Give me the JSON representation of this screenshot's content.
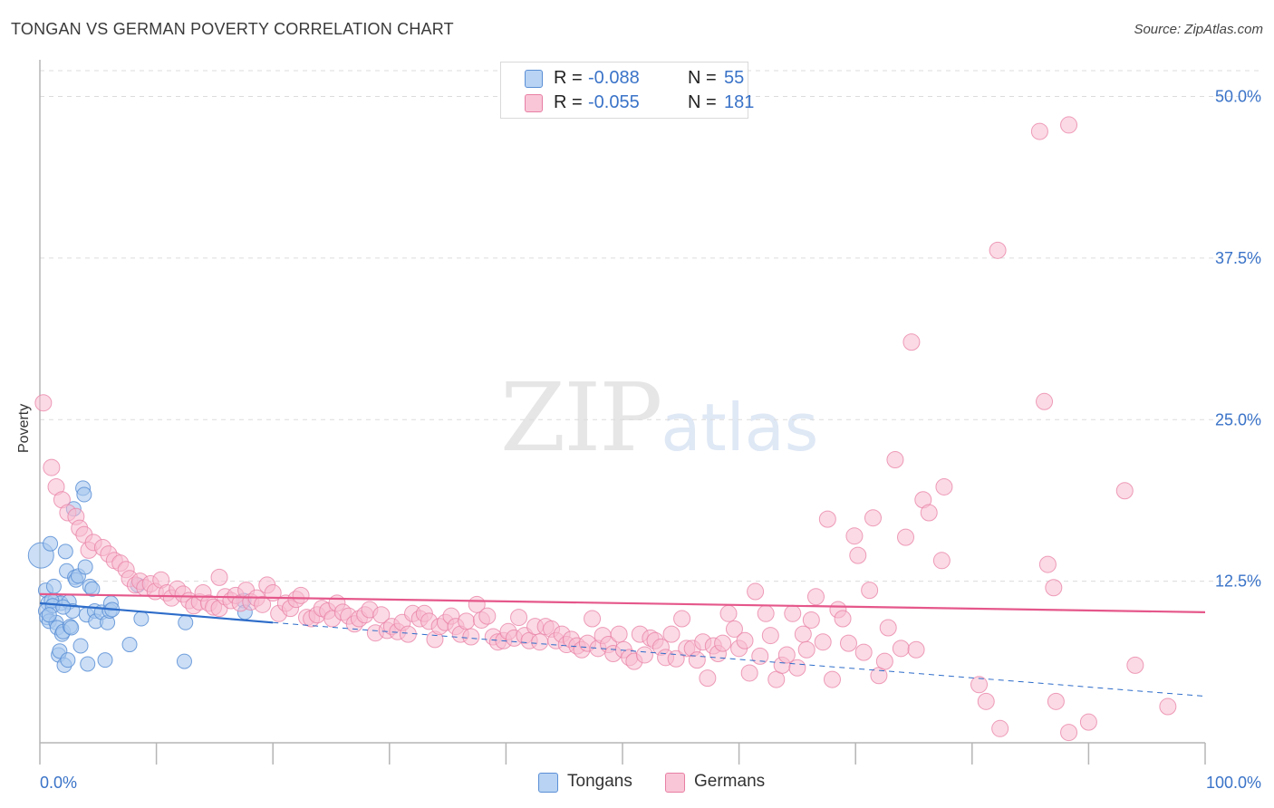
{
  "header": {
    "title": "TONGAN VS GERMAN POVERTY CORRELATION CHART",
    "source": "Source: ZipAtlas.com"
  },
  "watermark": {
    "zip": "ZIP",
    "atlas": "atlas"
  },
  "legend": {
    "rows": [
      {
        "r_label": "R =",
        "r_value": "-0.088",
        "n_label": "N =",
        "n_value": "55"
      },
      {
        "r_label": "R =",
        "r_value": "-0.055",
        "n_label": "N =",
        "n_value": "181"
      }
    ],
    "bottom": [
      "Tongans",
      "Germans"
    ]
  },
  "colors": {
    "tongans_fill": "#a9c8ef",
    "tongans_stroke": "#5b8fd6",
    "tongans_line": "#2d6cc9",
    "germans_fill": "#f7bcd0",
    "germans_stroke": "#e87fa4",
    "germans_line": "#e5578a",
    "tick_label": "#3a73c8"
  },
  "chart_data": {
    "type": "scatter",
    "title": "TONGAN VS GERMAN POVERTY CORRELATION CHART",
    "xlabel": "",
    "ylabel": "Poverty",
    "xlim": [
      0,
      100
    ],
    "ylim": [
      0,
      52
    ],
    "x_tick_labels": [
      "0.0%",
      "100.0%"
    ],
    "y_ticks": [
      12.5,
      25.0,
      37.5,
      50.0
    ],
    "y_tick_labels": [
      "12.5%",
      "25.0%",
      "37.5%",
      "50.0%"
    ],
    "grid": true,
    "series": [
      {
        "name": "Tongans",
        "r": -0.088,
        "n": 55,
        "trend": {
          "x": [
            0,
            20
          ],
          "y": [
            10.8,
            9.3
          ]
        },
        "trend_extension": {
          "x": [
            20,
            100
          ],
          "y": [
            9.3,
            3.6
          ]
        },
        "points": [
          [
            0.1,
            14.5
          ],
          [
            0.5,
            11.8
          ],
          [
            0.7,
            10.8
          ],
          [
            0.5,
            10.2
          ],
          [
            0.6,
            9.7
          ],
          [
            0.8,
            9.4
          ],
          [
            0.9,
            15.4
          ],
          [
            1.2,
            12.1
          ],
          [
            1.3,
            11.0
          ],
          [
            1.4,
            9.3
          ],
          [
            1.5,
            8.9
          ],
          [
            1.6,
            6.8
          ],
          [
            1.7,
            7.1
          ],
          [
            1.8,
            10.8
          ],
          [
            1.9,
            8.4
          ],
          [
            2.0,
            8.6
          ],
          [
            2.1,
            6.0
          ],
          [
            2.2,
            14.8
          ],
          [
            2.3,
            13.3
          ],
          [
            2.4,
            6.4
          ],
          [
            2.5,
            10.9
          ],
          [
            2.6,
            9.0
          ],
          [
            2.7,
            8.9
          ],
          [
            2.8,
            10.2
          ],
          [
            2.9,
            18.1
          ],
          [
            3.0,
            12.8
          ],
          [
            3.1,
            12.6
          ],
          [
            3.3,
            12.9
          ],
          [
            3.5,
            7.5
          ],
          [
            3.7,
            19.7
          ],
          [
            3.8,
            19.2
          ],
          [
            3.9,
            13.6
          ],
          [
            4.0,
            9.9
          ],
          [
            4.1,
            6.1
          ],
          [
            4.3,
            12.1
          ],
          [
            4.5,
            11.9
          ],
          [
            4.7,
            10.2
          ],
          [
            4.8,
            9.4
          ],
          [
            5.3,
            10.1
          ],
          [
            5.6,
            6.4
          ],
          [
            5.8,
            9.3
          ],
          [
            6.0,
            10.2
          ],
          [
            6.1,
            10.8
          ],
          [
            6.2,
            10.3
          ],
          [
            7.7,
            7.6
          ],
          [
            8.4,
            12.2
          ],
          [
            8.7,
            9.6
          ],
          [
            12.5,
            9.3
          ],
          [
            12.4,
            6.3
          ],
          [
            17.5,
            11.0
          ],
          [
            17.6,
            10.1
          ],
          [
            1.0,
            11.0
          ],
          [
            1.1,
            10.6
          ],
          [
            2.0,
            10.5
          ],
          [
            0.8,
            9.9
          ]
        ]
      },
      {
        "name": "Germans",
        "r": -0.055,
        "n": 181,
        "trend": {
          "x": [
            0,
            100
          ],
          "y": [
            11.5,
            10.1
          ]
        },
        "points": [
          [
            0.3,
            26.3
          ],
          [
            1.0,
            21.3
          ],
          [
            1.4,
            19.8
          ],
          [
            1.9,
            18.8
          ],
          [
            2.4,
            17.8
          ],
          [
            3.1,
            17.5
          ],
          [
            3.4,
            16.6
          ],
          [
            3.8,
            16.1
          ],
          [
            4.2,
            14.9
          ],
          [
            4.6,
            15.5
          ],
          [
            5.4,
            15.1
          ],
          [
            5.9,
            14.6
          ],
          [
            6.4,
            14.1
          ],
          [
            6.9,
            13.9
          ],
          [
            7.4,
            13.4
          ],
          [
            7.7,
            12.7
          ],
          [
            8.2,
            12.2
          ],
          [
            8.6,
            12.5
          ],
          [
            9.0,
            12.0
          ],
          [
            9.5,
            12.3
          ],
          [
            9.9,
            11.7
          ],
          [
            10.4,
            12.6
          ],
          [
            10.9,
            11.6
          ],
          [
            11.3,
            11.2
          ],
          [
            11.8,
            11.9
          ],
          [
            12.3,
            11.5
          ],
          [
            12.8,
            11.0
          ],
          [
            13.2,
            10.6
          ],
          [
            13.7,
            10.9
          ],
          [
            14.0,
            11.6
          ],
          [
            14.5,
            10.8
          ],
          [
            14.9,
            10.5
          ],
          [
            15.4,
            10.4
          ],
          [
            15.4,
            12.8
          ],
          [
            15.9,
            11.3
          ],
          [
            16.4,
            11.0
          ],
          [
            16.8,
            11.4
          ],
          [
            17.2,
            10.8
          ],
          [
            17.7,
            11.8
          ],
          [
            18.1,
            10.9
          ],
          [
            18.6,
            11.2
          ],
          [
            19.1,
            10.7
          ],
          [
            19.5,
            12.2
          ],
          [
            20.0,
            11.6
          ],
          [
            20.5,
            10.0
          ],
          [
            21.1,
            10.8
          ],
          [
            21.5,
            10.4
          ],
          [
            22.0,
            11.1
          ],
          [
            22.4,
            11.4
          ],
          [
            22.9,
            9.7
          ],
          [
            23.3,
            9.6
          ],
          [
            23.8,
            9.9
          ],
          [
            24.2,
            10.4
          ],
          [
            24.7,
            10.2
          ],
          [
            25.1,
            9.6
          ],
          [
            25.5,
            10.8
          ],
          [
            26.0,
            10.1
          ],
          [
            26.5,
            9.8
          ],
          [
            27.0,
            9.2
          ],
          [
            27.4,
            9.6
          ],
          [
            27.9,
            9.9
          ],
          [
            28.3,
            10.3
          ],
          [
            28.8,
            8.5
          ],
          [
            29.3,
            9.9
          ],
          [
            29.8,
            8.7
          ],
          [
            30.2,
            9.0
          ],
          [
            30.7,
            8.6
          ],
          [
            31.1,
            9.3
          ],
          [
            31.6,
            8.4
          ],
          [
            32.0,
            10.0
          ],
          [
            32.6,
            9.6
          ],
          [
            33.0,
            10.0
          ],
          [
            33.4,
            9.4
          ],
          [
            33.9,
            8.0
          ],
          [
            34.3,
            9.0
          ],
          [
            34.8,
            9.3
          ],
          [
            35.3,
            9.8
          ],
          [
            35.7,
            9.0
          ],
          [
            36.1,
            8.4
          ],
          [
            36.6,
            9.4
          ],
          [
            37.0,
            8.2
          ],
          [
            37.5,
            10.7
          ],
          [
            37.9,
            9.5
          ],
          [
            38.4,
            9.8
          ],
          [
            38.9,
            8.2
          ],
          [
            39.3,
            7.8
          ],
          [
            39.8,
            7.9
          ],
          [
            40.2,
            8.6
          ],
          [
            40.7,
            8.1
          ],
          [
            41.1,
            9.7
          ],
          [
            41.6,
            8.3
          ],
          [
            42.0,
            7.9
          ],
          [
            42.5,
            9.0
          ],
          [
            42.9,
            7.8
          ],
          [
            43.4,
            9.0
          ],
          [
            43.9,
            8.8
          ],
          [
            44.3,
            7.9
          ],
          [
            44.8,
            8.4
          ],
          [
            45.2,
            7.6
          ],
          [
            45.6,
            8.0
          ],
          [
            46.1,
            7.5
          ],
          [
            46.5,
            7.2
          ],
          [
            47.0,
            7.7
          ],
          [
            47.4,
            9.6
          ],
          [
            47.9,
            7.3
          ],
          [
            48.3,
            8.3
          ],
          [
            48.8,
            7.6
          ],
          [
            49.2,
            6.9
          ],
          [
            49.7,
            8.4
          ],
          [
            50.1,
            7.2
          ],
          [
            50.6,
            6.6
          ],
          [
            51.0,
            6.3
          ],
          [
            51.5,
            8.4
          ],
          [
            51.9,
            6.8
          ],
          [
            52.4,
            8.1
          ],
          [
            52.8,
            7.9
          ],
          [
            53.3,
            7.4
          ],
          [
            53.7,
            6.6
          ],
          [
            54.2,
            8.4
          ],
          [
            54.6,
            6.5
          ],
          [
            55.1,
            9.6
          ],
          [
            55.5,
            7.3
          ],
          [
            56.0,
            7.3
          ],
          [
            56.4,
            6.4
          ],
          [
            56.9,
            7.8
          ],
          [
            57.3,
            5.0
          ],
          [
            57.8,
            7.5
          ],
          [
            58.2,
            6.9
          ],
          [
            58.6,
            7.7
          ],
          [
            59.1,
            10.0
          ],
          [
            59.6,
            8.8
          ],
          [
            60.0,
            7.3
          ],
          [
            60.5,
            7.9
          ],
          [
            60.9,
            5.4
          ],
          [
            61.4,
            11.7
          ],
          [
            61.8,
            6.7
          ],
          [
            62.3,
            10.0
          ],
          [
            62.7,
            8.3
          ],
          [
            63.2,
            4.9
          ],
          [
            63.7,
            6.0
          ],
          [
            64.1,
            6.8
          ],
          [
            64.6,
            10.0
          ],
          [
            65.0,
            5.8
          ],
          [
            65.5,
            8.4
          ],
          [
            65.8,
            7.2
          ],
          [
            66.2,
            9.5
          ],
          [
            66.6,
            11.3
          ],
          [
            67.2,
            7.8
          ],
          [
            67.6,
            17.3
          ],
          [
            68.0,
            4.9
          ],
          [
            68.5,
            10.3
          ],
          [
            68.9,
            9.6
          ],
          [
            69.4,
            7.7
          ],
          [
            69.9,
            16.0
          ],
          [
            70.2,
            14.5
          ],
          [
            70.7,
            7.0
          ],
          [
            71.2,
            11.8
          ],
          [
            71.5,
            17.4
          ],
          [
            72.0,
            5.2
          ],
          [
            72.5,
            6.3
          ],
          [
            72.8,
            8.9
          ],
          [
            73.4,
            21.9
          ],
          [
            73.9,
            7.3
          ],
          [
            74.3,
            15.9
          ],
          [
            74.8,
            31.0
          ],
          [
            75.2,
            7.2
          ],
          [
            75.8,
            18.8
          ],
          [
            76.3,
            17.8
          ],
          [
            77.4,
            14.1
          ],
          [
            77.6,
            19.8
          ],
          [
            82.2,
            38.1
          ],
          [
            85.8,
            47.3
          ],
          [
            86.2,
            26.4
          ],
          [
            86.5,
            13.8
          ],
          [
            87.0,
            12.0
          ],
          [
            88.3,
            47.8
          ],
          [
            80.6,
            4.5
          ],
          [
            81.2,
            3.2
          ],
          [
            82.4,
            1.1
          ],
          [
            87.2,
            3.2
          ],
          [
            88.3,
            0.8
          ],
          [
            90.0,
            1.6
          ],
          [
            93.1,
            19.5
          ],
          [
            94.0,
            6.0
          ],
          [
            96.8,
            2.8
          ]
        ]
      }
    ]
  }
}
